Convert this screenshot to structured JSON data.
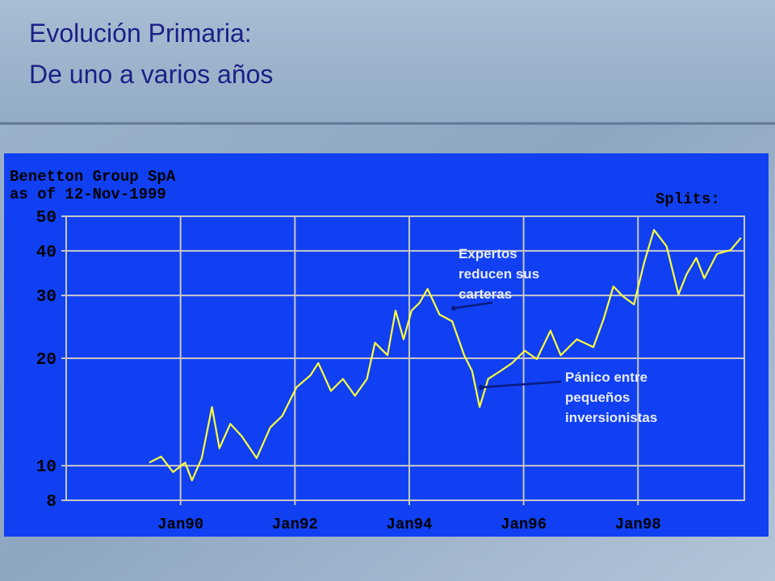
{
  "slide_title": [
    "Evolución Primaria:",
    "De uno a varios años"
  ],
  "chart_data": {
    "type": "line",
    "title": "Benetton Group SpA",
    "subtitle": "as of 12-Nov-1999",
    "splits_label": "Splits:",
    "annotations": [
      {
        "lines": [
          "Expertos",
          "reducen sus",
          "carteras"
        ]
      },
      {
        "lines": [
          "Pánico entre",
          "pequeños",
          "inversionistas"
        ]
      }
    ],
    "x": [
      1989.45,
      1989.66,
      1989.87,
      1990.08,
      1990.2,
      1990.37,
      1990.55,
      1990.68,
      1990.87,
      1991.07,
      1991.33,
      1991.57,
      1991.78,
      1992.03,
      1992.27,
      1992.41,
      1992.63,
      1992.84,
      1993.05,
      1993.26,
      1993.4,
      1993.62,
      1993.76,
      1993.9,
      1994.04,
      1994.18,
      1994.32,
      1994.53,
      1994.75,
      1994.96,
      1995.1,
      1995.23,
      1995.38,
      1995.59,
      1995.8,
      1996.02,
      1996.23,
      1996.47,
      1996.65,
      1996.93,
      1997.22,
      1997.4,
      1997.57,
      1997.74,
      1997.93,
      1998.11,
      1998.28,
      1998.5,
      1998.71,
      1998.85,
      1999.02,
      1999.16,
      1999.38,
      1999.62,
      1999.8
    ],
    "series": [
      {
        "color": "#ffff3a",
        "values": [
          10.2,
          10.6,
          9.6,
          10.2,
          9.1,
          10.5,
          14.6,
          11.2,
          13.1,
          12.1,
          10.5,
          12.8,
          13.8,
          16.6,
          17.9,
          19.4,
          16.2,
          17.5,
          15.7,
          17.5,
          22.1,
          20.4,
          27.2,
          22.6,
          27.2,
          28.6,
          31.3,
          26.5,
          25.4,
          20.4,
          18.4,
          14.6,
          17.5,
          18.4,
          19.4,
          21.0,
          19.9,
          23.9,
          20.4,
          22.6,
          21.5,
          25.8,
          31.8,
          29.8,
          28.3,
          37.2,
          45.8,
          41.2,
          30.2,
          34.4,
          38.2,
          33.5,
          39.2,
          40.2,
          43.5
        ]
      }
    ],
    "xlim": [
      1988,
      1999.86
    ],
    "xticks": [
      {
        "value": 1990,
        "label": "Jan90"
      },
      {
        "value": 1992,
        "label": "Jan92"
      },
      {
        "value": 1994,
        "label": "Jan94"
      },
      {
        "value": 1996,
        "label": "Jan96"
      },
      {
        "value": 1998,
        "label": "Jan98"
      }
    ],
    "ylim": [
      8,
      50
    ],
    "yticks": [
      8,
      10,
      20,
      30,
      40,
      50
    ],
    "log_y": true,
    "grid": true
  }
}
